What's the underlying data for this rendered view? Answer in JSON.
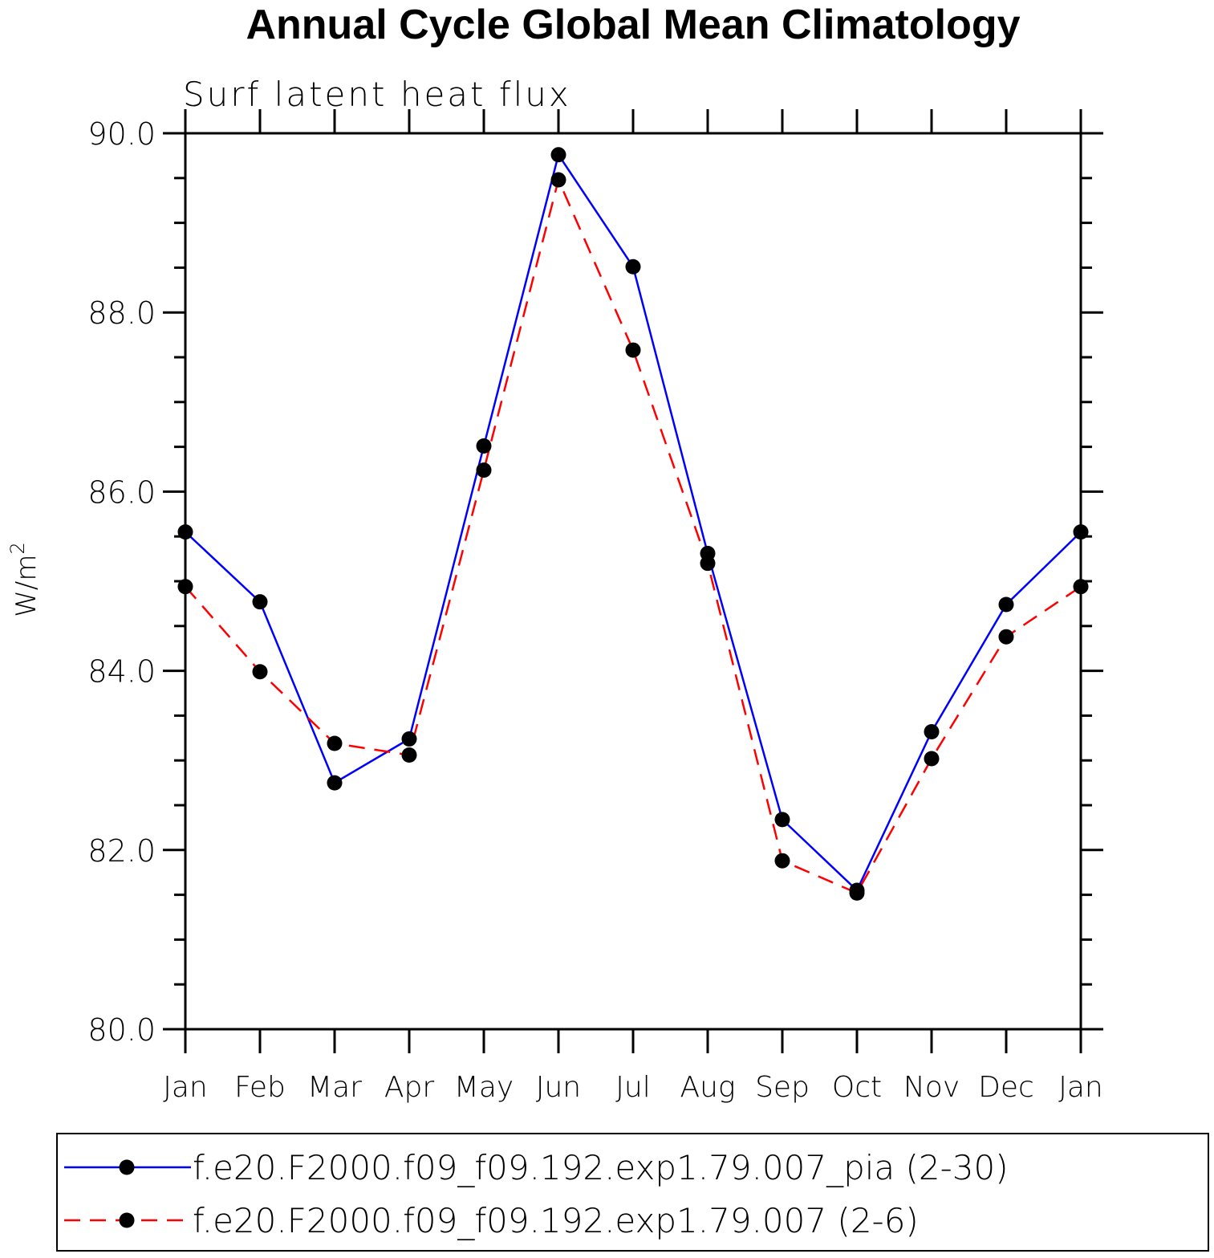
{
  "chart_data": {
    "type": "line",
    "title": "Annual Cycle Global Mean Climatology",
    "subtitle": "Surf latent heat flux",
    "ylabel": "W/m²",
    "ylabel_base": "W/m",
    "ylabel_sup": "2",
    "ylim": [
      80.0,
      90.0
    ],
    "yticks": [
      "80.0",
      "82.0",
      "84.0",
      "86.0",
      "88.0",
      "90.0"
    ],
    "categories": [
      "Jan",
      "Feb",
      "Mar",
      "Apr",
      "May",
      "Jun",
      "Jul",
      "Aug",
      "Sep",
      "Oct",
      "Nov",
      "Dec",
      "Jan"
    ],
    "series": [
      {
        "name": "f.e20.F2000.f09_f09.192.exp1.79.007_pia (2-30)",
        "color": "#0000ff",
        "dash": "solid",
        "values": [
          85.55,
          84.77,
          82.75,
          83.24,
          86.51,
          89.76,
          88.51,
          85.31,
          82.34,
          81.55,
          83.32,
          84.74,
          85.55
        ]
      },
      {
        "name": "f.e20.F2000.f09_f09.192.exp1.79.007 (2-6)",
        "color": "#ff0000",
        "dash": "dashed",
        "values": [
          84.94,
          83.99,
          83.19,
          83.06,
          86.24,
          89.48,
          87.58,
          85.2,
          81.88,
          81.52,
          83.02,
          84.38,
          84.94
        ]
      }
    ],
    "grid": false,
    "legend_position": "bottom"
  }
}
